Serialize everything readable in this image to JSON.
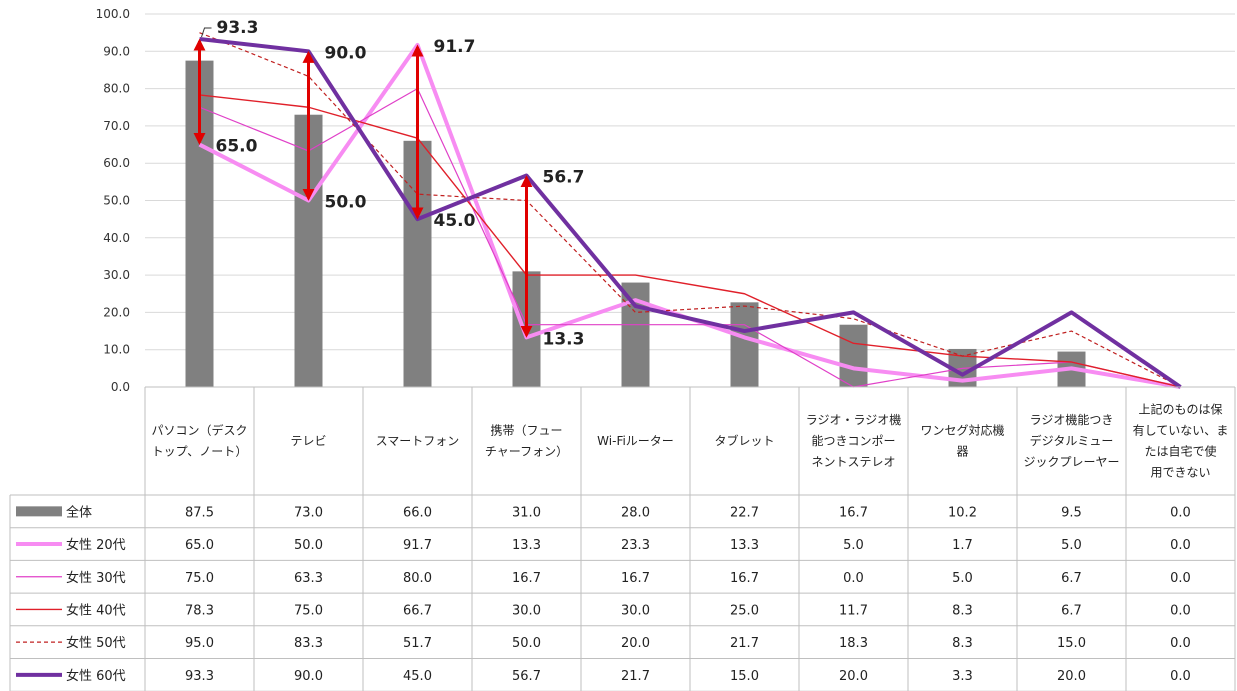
{
  "chart_data": {
    "type": "bar+line",
    "title": "",
    "xlabel": "",
    "ylabel": "",
    "ylim": [
      0,
      100
    ],
    "yticks": [
      "0.0",
      "10.0",
      "20.0",
      "30.0",
      "40.0",
      "50.0",
      "60.0",
      "70.0",
      "80.0",
      "90.0",
      "100.0"
    ],
    "grid": true,
    "legend": "table-left",
    "categories": [
      [
        "パソコン（デスク",
        "トップ、ノート）"
      ],
      [
        "テレビ"
      ],
      [
        "スマートフォン"
      ],
      [
        "携帯（フュー",
        "チャーフォン）"
      ],
      [
        "Wi-Fiルーター"
      ],
      [
        "タブレット"
      ],
      [
        "ラジオ・ラジオ機",
        "能つきコンポー",
        "ネントステレオ"
      ],
      [
        "ワンセグ対応機",
        "器"
      ],
      [
        "ラジオ機能つき",
        "デジタルミュー",
        "ジックプレーヤー"
      ],
      [
        "上記のものは保",
        "有していない、ま",
        "たは自宅で使",
        "用できない"
      ]
    ],
    "series": [
      {
        "name": "全体",
        "kind": "bar",
        "color": "#808080",
        "values": [
          87.5,
          73.0,
          66.0,
          31.0,
          28.0,
          22.7,
          16.7,
          10.2,
          9.5,
          0.0
        ],
        "display": [
          "87.5",
          "73.0",
          "66.0",
          "31.0",
          "28.0",
          "22.7",
          "16.7",
          "10.2",
          "9.5",
          "0.0"
        ]
      },
      {
        "name": "女性 20代",
        "kind": "line",
        "color": "#F78CF2",
        "width": 4,
        "dash": "",
        "values": [
          65.0,
          50.0,
          91.7,
          13.3,
          23.3,
          13.3,
          5.0,
          1.7,
          5.0,
          0.0
        ],
        "display": [
          "65.0",
          "50.0",
          "91.7",
          "13.3",
          "23.3",
          "13.3",
          "5.0",
          "1.7",
          "5.0",
          "0.0"
        ]
      },
      {
        "name": "女性 30代",
        "kind": "line",
        "color": "#E040C8",
        "width": 1.2,
        "dash": "",
        "values": [
          75.0,
          63.3,
          80.0,
          16.7,
          16.7,
          16.7,
          0.0,
          5.0,
          6.7,
          0.0
        ],
        "display": [
          "75.0",
          "63.3",
          "80.0",
          "16.7",
          "16.7",
          "16.7",
          "0.0",
          "5.0",
          "6.7",
          "0.0"
        ]
      },
      {
        "name": "女性 40代",
        "kind": "line",
        "color": "#E0202A",
        "width": 1.4,
        "dash": "",
        "values": [
          78.3,
          75.0,
          66.7,
          30.0,
          30.0,
          25.0,
          11.7,
          8.3,
          6.7,
          0.0
        ],
        "display": [
          "78.3",
          "75.0",
          "66.7",
          "30.0",
          "30.0",
          "25.0",
          "11.7",
          "8.3",
          "6.7",
          "0.0"
        ]
      },
      {
        "name": "女性 50代",
        "kind": "line",
        "color": "#C02020",
        "width": 1.2,
        "dash": "4,3",
        "values": [
          95.0,
          83.3,
          51.7,
          50.0,
          20.0,
          21.7,
          18.3,
          8.3,
          15.0,
          0.0
        ],
        "display": [
          "95.0",
          "83.3",
          "51.7",
          "50.0",
          "20.0",
          "21.7",
          "18.3",
          "8.3",
          "15.0",
          "0.0"
        ]
      },
      {
        "name": "女性 60代",
        "kind": "line",
        "color": "#7030A0",
        "width": 4,
        "dash": "",
        "values": [
          93.3,
          90.0,
          45.0,
          56.7,
          21.7,
          15.0,
          20.0,
          3.3,
          20.0,
          0.0
        ],
        "display": [
          "93.3",
          "90.0",
          "45.0",
          "56.7",
          "21.7",
          "15.0",
          "20.0",
          "3.3",
          "20.0",
          "0.0"
        ]
      }
    ],
    "annotations": [
      {
        "text": "93.3",
        "cat": 0,
        "value": 93.3,
        "side": "top-right"
      },
      {
        "text": "65.0",
        "cat": 0,
        "value": 65.0,
        "side": "right"
      },
      {
        "text": "90.0",
        "cat": 1,
        "value": 90.0,
        "side": "right"
      },
      {
        "text": "50.0",
        "cat": 1,
        "value": 50.0,
        "side": "right"
      },
      {
        "text": "91.7",
        "cat": 2,
        "value": 91.7,
        "side": "right"
      },
      {
        "text": "45.0",
        "cat": 2,
        "value": 45.0,
        "side": "right"
      },
      {
        "text": "56.7",
        "cat": 3,
        "value": 56.7,
        "side": "right"
      },
      {
        "text": "13.3",
        "cat": 3,
        "value": 13.3,
        "side": "right"
      }
    ],
    "arrows": [
      {
        "cat": 0,
        "from": 93.3,
        "to": 65.0,
        "color": "#E00000"
      },
      {
        "cat": 1,
        "from": 90.0,
        "to": 50.0,
        "color": "#E00000"
      },
      {
        "cat": 2,
        "from": 91.7,
        "to": 45.0,
        "color": "#E00000"
      },
      {
        "cat": 3,
        "from": 56.7,
        "to": 13.3,
        "color": "#E00000"
      }
    ]
  }
}
